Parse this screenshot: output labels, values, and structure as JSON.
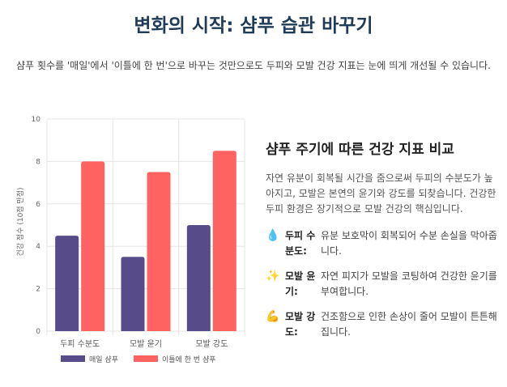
{
  "header": {
    "title": "변화의 시작: 샴푸 습관 바꾸기",
    "subtitle": "샴푸 횟수를 '매일'에서 '이틀에 한 번'으로 바꾸는 것만으로도 두피와 모발 건강 지표는 눈에 띄게 개선될 수 있습니다."
  },
  "chart_data": {
    "type": "bar",
    "categories": [
      "두피 수분도",
      "모발 윤기",
      "모발 강도"
    ],
    "series": [
      {
        "name": "매일 샴푸",
        "values": [
          4.5,
          3.5,
          5.0
        ],
        "color": "#574b8a"
      },
      {
        "name": "이틀에 한 번 샴푸",
        "values": [
          8.0,
          7.5,
          8.5
        ],
        "color": "#ff6361"
      }
    ],
    "ylabel": "건강 점수 (10점 만점)",
    "ylim": [
      0,
      10
    ],
    "yticks": [
      0,
      2,
      4,
      6,
      8,
      10
    ],
    "grid": true,
    "legend": "bottom"
  },
  "panel": {
    "title": "샴푸 주기에 따른 건강 지표 비교",
    "description": "자연 유분이 회복될 시간을 줌으로써 두피의 수분도가 높아지고, 모발은 본연의 윤기와 강도를 되찾습니다. 건강한 두피 환경은 장기적으로 모발 건강의 핵심입니다.",
    "items": [
      {
        "icon": "💧",
        "icon_name": "water-drop-icon",
        "title": "두피 수분도:",
        "desc": "유분 보호막이 회복되어 수분 손실을 막아줍니다."
      },
      {
        "icon": "✨",
        "icon_name": "sparkles-icon",
        "title": "모발 윤기:",
        "desc": "자연 피지가 모발을 코팅하여 건강한 윤기를 부여합니다."
      },
      {
        "icon": "💪",
        "icon_name": "muscle-icon",
        "title": "모발 강도:",
        "desc": "건조함으로 인한 손상이 줄어 모발이 튼튼해집니다."
      }
    ]
  }
}
